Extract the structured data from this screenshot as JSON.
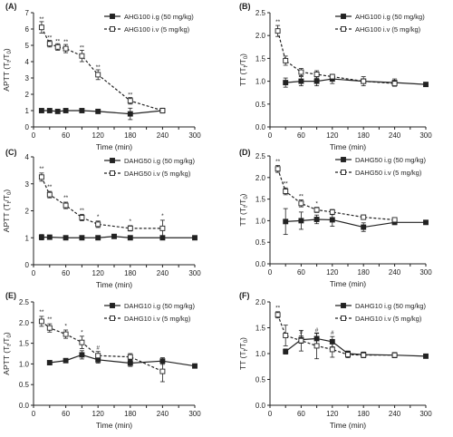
{
  "chart_data": [
    {
      "panel": "(A)",
      "type": "line",
      "ylabel_main": "APTT",
      "ylabel_sub": "(T",
      "xlabel": "Time (min)",
      "xlim": [
        0,
        300
      ],
      "ylim": [
        0,
        7
      ],
      "x_ticks": [
        "0",
        "30",
        "60",
        "90",
        "120",
        "150",
        "180",
        "210",
        "240",
        "270",
        "300"
      ],
      "y_ticks": [
        "0",
        "1",
        "2",
        "3",
        "4",
        "5",
        "6",
        "7"
      ],
      "legend_position": "top-right",
      "series": [
        {
          "name": "AHG100 i.g (50 mg/kg)",
          "style": "solid",
          "x": [
            15,
            30,
            45,
            60,
            90,
            120,
            180,
            240
          ],
          "y": [
            1.0,
            1.0,
            0.95,
            1.0,
            1.0,
            0.95,
            0.8,
            1.0
          ],
          "err": [
            0.1,
            0.1,
            0.1,
            0.1,
            0.1,
            0.1,
            0.35,
            0.1
          ]
        },
        {
          "name": "AHG100 i.v (5 mg/kg)",
          "style": "dashed",
          "x": [
            15,
            30,
            45,
            60,
            90,
            120,
            180,
            240
          ],
          "y": [
            6.1,
            5.1,
            4.9,
            4.8,
            4.35,
            3.2,
            1.6,
            1.0
          ],
          "err": [
            0.35,
            0.2,
            0.2,
            0.25,
            0.35,
            0.3,
            0.2,
            0.15
          ]
        }
      ],
      "annotations": [
        {
          "x": 15,
          "y": 6.5,
          "text": "**"
        },
        {
          "x": 30,
          "y": 5.35,
          "text": "**"
        },
        {
          "x": 45,
          "y": 5.15,
          "text": "**"
        },
        {
          "x": 60,
          "y": 5.1,
          "text": "**"
        },
        {
          "x": 90,
          "y": 4.75,
          "text": "**"
        },
        {
          "x": 120,
          "y": 3.55,
          "text": "**"
        },
        {
          "x": 180,
          "y": 1.85,
          "text": "**"
        }
      ]
    },
    {
      "panel": "(B)",
      "type": "line",
      "ylabel_main": "TT",
      "ylabel_sub": "(T",
      "xlabel": "Time (min)",
      "xlim": [
        0,
        300
      ],
      "ylim": [
        0,
        2.5
      ],
      "x_ticks": [
        "0",
        "30",
        "60",
        "90",
        "120",
        "150",
        "180",
        "210",
        "240",
        "270",
        "300"
      ],
      "y_ticks": [
        "0.0",
        "0.5",
        "1.0",
        "1.5",
        "2.0",
        "2.5"
      ],
      "legend_position": "top-right",
      "series": [
        {
          "name": "AHG100 i.g (50 mg/kg)",
          "style": "solid",
          "x": [
            30,
            60,
            90,
            120,
            180,
            240,
            300
          ],
          "y": [
            0.97,
            1.0,
            1.0,
            1.05,
            1.0,
            0.97,
            0.93
          ],
          "err": [
            0.1,
            0.1,
            0.1,
            0.1,
            0.1,
            0.08,
            0.0
          ]
        },
        {
          "name": "AHG100 i.v (5 mg/kg)",
          "style": "dashed",
          "x": [
            15,
            30,
            60,
            90,
            120,
            180,
            240
          ],
          "y": [
            2.1,
            1.45,
            1.2,
            1.15,
            1.1,
            1.0,
            0.95
          ],
          "err": [
            0.12,
            0.1,
            0.08,
            0.08,
            0.05,
            0.05,
            0.05
          ]
        }
      ],
      "annotations": [
        {
          "x": 15,
          "y": 2.26,
          "text": "**"
        }
      ]
    },
    {
      "panel": "(C)",
      "type": "line",
      "ylabel_main": "APTT",
      "ylabel_sub": "(T",
      "xlabel": "Time (min)",
      "xlim": [
        0,
        300
      ],
      "ylim": [
        0,
        4
      ],
      "x_ticks": [
        "0",
        "30",
        "60",
        "90",
        "120",
        "150",
        "180",
        "210",
        "240",
        "270",
        "300"
      ],
      "y_ticks": [
        "0",
        "1",
        "2",
        "3",
        "4"
      ],
      "legend_position": "top-right",
      "series": [
        {
          "name": "DAHG50 i.g (50 mg/kg)",
          "style": "solid",
          "x": [
            15,
            30,
            60,
            90,
            120,
            150,
            180,
            240,
            300
          ],
          "y": [
            1.02,
            1.02,
            1.0,
            1.0,
            1.0,
            1.05,
            1.0,
            1.0,
            1.0
          ],
          "err": [
            0.1,
            0.08,
            0.08,
            0.08,
            0.08,
            0.06,
            0.08,
            0.06,
            0.0
          ]
        },
        {
          "name": "DAHG50 i.v (5 mg/kg)",
          "style": "dashed",
          "x": [
            15,
            30,
            60,
            90,
            120,
            180,
            240
          ],
          "y": [
            3.25,
            2.6,
            2.2,
            1.75,
            1.5,
            1.35,
            1.35
          ],
          "err": [
            0.15,
            0.12,
            0.12,
            0.12,
            0.12,
            0.1,
            0.3
          ]
        }
      ],
      "annotations": [
        {
          "x": 15,
          "y": 3.5,
          "text": "**"
        },
        {
          "x": 30,
          "y": 2.82,
          "text": "**"
        },
        {
          "x": 60,
          "y": 2.42,
          "text": "**"
        },
        {
          "x": 90,
          "y": 1.95,
          "text": "**"
        },
        {
          "x": 120,
          "y": 1.72,
          "text": "*"
        },
        {
          "x": 180,
          "y": 1.55,
          "text": "*"
        },
        {
          "x": 240,
          "y": 1.75,
          "text": "*"
        }
      ]
    },
    {
      "panel": "(D)",
      "type": "line",
      "ylabel_main": "TT",
      "ylabel_sub": "(T",
      "xlabel": "Time (min)",
      "xlim": [
        0,
        300
      ],
      "ylim": [
        0,
        2.5
      ],
      "x_ticks": [
        "0",
        "30",
        "60",
        "90",
        "120",
        "150",
        "180",
        "210",
        "240",
        "270",
        "300"
      ],
      "y_ticks": [
        "0.0",
        "0.5",
        "1.0",
        "1.5",
        "2.0",
        "2.5"
      ],
      "legend_position": "top-right",
      "series": [
        {
          "name": "DAHG50 i.g (50 mg/kg)",
          "style": "solid",
          "x": [
            30,
            60,
            90,
            120,
            180,
            240,
            300
          ],
          "y": [
            0.98,
            1.0,
            1.03,
            1.02,
            0.85,
            0.96,
            0.96
          ],
          "err": [
            0.3,
            0.2,
            0.1,
            0.15,
            0.1,
            0.05,
            0.0
          ]
        },
        {
          "name": "DAHG50 i.v (5 mg/kg)",
          "style": "dashed",
          "x": [
            15,
            30,
            60,
            90,
            120,
            180,
            240
          ],
          "y": [
            2.2,
            1.68,
            1.4,
            1.25,
            1.2,
            1.08,
            1.02
          ],
          "err": [
            0.08,
            0.08,
            0.08,
            0.06,
            0.06,
            0.05,
            0.05
          ]
        }
      ],
      "annotations": [
        {
          "x": 15,
          "y": 2.33,
          "text": "**"
        },
        {
          "x": 30,
          "y": 1.82,
          "text": "**"
        },
        {
          "x": 60,
          "y": 1.52,
          "text": "**"
        },
        {
          "x": 90,
          "y": 1.35,
          "text": "*"
        }
      ]
    },
    {
      "panel": "(E)",
      "type": "line",
      "ylabel_main": "APTT",
      "ylabel_sub": "(T",
      "xlabel": "Time (min)",
      "xlim": [
        0,
        300
      ],
      "ylim": [
        0,
        2.5
      ],
      "x_ticks": [
        "0",
        "30",
        "60",
        "90",
        "120",
        "150",
        "180",
        "210",
        "240",
        "270",
        "300"
      ],
      "y_ticks": [
        "0.0",
        "0.5",
        "1.0",
        "1.5",
        "2.0",
        "2.5"
      ],
      "legend_position": "top-right",
      "series": [
        {
          "name": "DAHG10 i.g (50 mg/kg)",
          "style": "solid",
          "x": [
            30,
            60,
            90,
            120,
            180,
            240,
            300
          ],
          "y": [
            1.03,
            1.08,
            1.22,
            1.1,
            1.02,
            1.07,
            0.95
          ],
          "err": [
            0.05,
            0.05,
            0.1,
            0.08,
            0.08,
            0.08,
            0.05
          ]
        },
        {
          "name": "DAHG10 i.v (5 mg/kg)",
          "style": "dashed",
          "x": [
            15,
            30,
            60,
            90,
            120,
            180,
            240
          ],
          "y": [
            2.03,
            1.87,
            1.72,
            1.52,
            1.2,
            1.17,
            0.82
          ],
          "err": [
            0.12,
            0.1,
            0.1,
            0.15,
            0.1,
            0.08,
            0.25
          ]
        }
      ],
      "annotations": [
        {
          "x": 15,
          "y": 2.22,
          "text": "**"
        },
        {
          "x": 30,
          "y": 2.04,
          "text": "**"
        },
        {
          "x": 60,
          "y": 1.88,
          "text": "*"
        },
        {
          "x": 90,
          "y": 1.72,
          "text": "*"
        },
        {
          "x": 120,
          "y": 1.35,
          "text": "#"
        }
      ]
    },
    {
      "panel": "(F)",
      "type": "line",
      "ylabel_main": "TT",
      "ylabel_sub": "(T",
      "xlabel": "Time (min)",
      "xlim": [
        0,
        300
      ],
      "ylim": [
        0,
        2.0
      ],
      "x_ticks": [
        "0",
        "30",
        "60",
        "90",
        "120",
        "150",
        "180",
        "210",
        "240",
        "270",
        "300"
      ],
      "y_ticks": [
        "0.0",
        "0.5",
        "1.0",
        "1.5",
        "2.0"
      ],
      "legend_position": "top-right",
      "series": [
        {
          "name": "DAHG10 i.g (50 mg/kg)",
          "style": "solid",
          "x": [
            30,
            60,
            90,
            120,
            150,
            180,
            240,
            300
          ],
          "y": [
            1.04,
            1.27,
            1.29,
            1.23,
            1.0,
            0.98,
            0.97,
            0.95
          ],
          "err": [
            0.05,
            0.07,
            0.1,
            0.1,
            0.05,
            0.05,
            0.05,
            0.0
          ]
        },
        {
          "name": "DAHG10 i.v (5 mg/kg)",
          "style": "dashed",
          "x": [
            15,
            30,
            60,
            90,
            120,
            150,
            180,
            240
          ],
          "y": [
            1.75,
            1.35,
            1.25,
            1.15,
            1.08,
            0.98,
            0.97,
            0.97
          ],
          "err": [
            0.06,
            0.2,
            0.2,
            0.25,
            0.15,
            0.06,
            0.05,
            0.05
          ]
        }
      ],
      "annotations": [
        {
          "x": 15,
          "y": 1.85,
          "text": "**"
        },
        {
          "x": 60,
          "y": 1.38,
          "text": "#"
        },
        {
          "x": 90,
          "y": 1.42,
          "text": "#"
        },
        {
          "x": 120,
          "y": 1.37,
          "text": "#"
        }
      ]
    }
  ]
}
